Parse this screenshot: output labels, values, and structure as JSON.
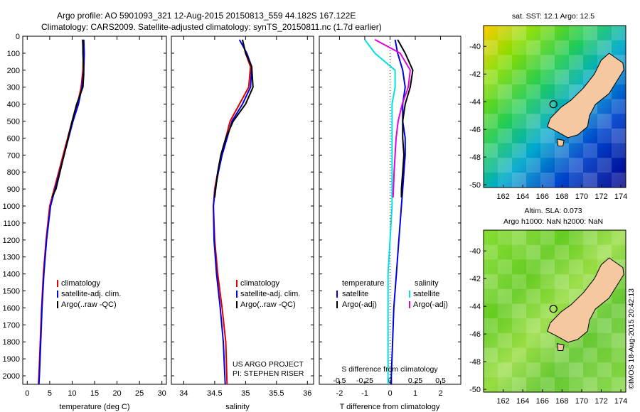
{
  "header": {
    "line1": "Argo profile: AO 5901093_321 12-Aug-2015 20150813_559 44.182S 167.122E",
    "line2": "Climatology: CARS2009. Satellite-adjusted climatology: synTS_20150811.nc (1.7d earlier)"
  },
  "colors": {
    "climatology": "#e00000",
    "satellite": "#0000e0",
    "argo": "#000000",
    "s_satellite": "#00e0e0",
    "s_argo": "#e000e0",
    "land": "#f5c8a0"
  },
  "chart_data": [
    {
      "type": "line",
      "title": "",
      "xlabel": "temperature (deg C)",
      "xlim": [
        -1,
        31
      ],
      "ylim": [
        0,
        2050
      ],
      "y_inverted": true,
      "x_ticks": [
        "0",
        "5",
        "10",
        "15",
        "20",
        "25",
        "30"
      ],
      "y_ticks": [
        "0",
        "100",
        "200",
        "300",
        "400",
        "500",
        "600",
        "700",
        "800",
        "900",
        "1000",
        "1100",
        "1200",
        "1300",
        "1400",
        "1500",
        "1600",
        "1700",
        "1800",
        "1900",
        "2000"
      ],
      "legend": [
        "climatology",
        "satellite-adj. clim.",
        "Argo(..raw -QC)"
      ],
      "legend_placement": "lower-center",
      "series": [
        {
          "name": "climatology",
          "color": "#e00000",
          "x": [
            12.3,
            12.5,
            12.4,
            12.0,
            11.2,
            10.0,
            9.0,
            8.0,
            7.0,
            6.0,
            5.0,
            4.2,
            3.6,
            3.2,
            2.9,
            2.6,
            2.5
          ],
          "y": [
            20,
            100,
            200,
            300,
            400,
            500,
            600,
            700,
            800,
            900,
            1000,
            1200,
            1400,
            1600,
            1800,
            2000,
            2050
          ]
        },
        {
          "name": "satellite-adj. clim.",
          "color": "#0000e0",
          "x": [
            12.6,
            12.7,
            12.6,
            12.2,
            11.4,
            10.2,
            9.2,
            8.2,
            7.2,
            6.2,
            5.2,
            4.3,
            3.7,
            3.3,
            3.0,
            2.7,
            2.6
          ],
          "y": [
            20,
            100,
            200,
            300,
            400,
            500,
            600,
            700,
            800,
            900,
            1000,
            1200,
            1400,
            1600,
            1800,
            2000,
            2050
          ]
        },
        {
          "name": "Argo(..raw -QC)",
          "color": "#000000",
          "x": [
            12.4,
            12.4,
            12.6,
            12.4,
            11.0,
            10.0,
            9.1,
            8.2,
            7.3,
            6.4,
            5.5
          ],
          "y": [
            20,
            100,
            220,
            300,
            400,
            500,
            600,
            700,
            800,
            900,
            950
          ]
        }
      ]
    },
    {
      "type": "line",
      "title": "",
      "xlabel": "salinity",
      "xlim": [
        33.8,
        36.1
      ],
      "ylim": [
        0,
        2050
      ],
      "y_inverted": true,
      "x_ticks": [
        "34",
        "34.5",
        "35",
        "35.5",
        "36"
      ],
      "legend": [
        "climatology",
        "satellite-adj. clim.",
        "Argo(..raw -QC)"
      ],
      "legend_placement": "lower-right",
      "annotation": [
        "US ARGO PROJECT",
        "PI: STEPHEN RISER"
      ],
      "series": [
        {
          "name": "climatology",
          "color": "#e00000",
          "x": [
            34.95,
            35.0,
            35.08,
            35.05,
            34.9,
            34.75,
            34.68,
            34.6,
            34.55,
            34.5,
            34.48,
            34.5,
            34.55,
            34.62,
            34.68,
            34.7
          ],
          "y": [
            20,
            100,
            180,
            300,
            400,
            500,
            600,
            700,
            800,
            900,
            1000,
            1200,
            1400,
            1600,
            1800,
            2050
          ]
        },
        {
          "name": "satellite-adj. clim.",
          "color": "#0000e0",
          "x": [
            34.9,
            35.02,
            35.1,
            35.08,
            34.95,
            34.78,
            34.7,
            34.62,
            34.56,
            34.51,
            34.48,
            34.49,
            34.53,
            34.59,
            34.64,
            34.67
          ],
          "y": [
            20,
            100,
            180,
            300,
            400,
            500,
            600,
            700,
            800,
            900,
            1000,
            1200,
            1400,
            1600,
            1800,
            2050
          ]
        },
        {
          "name": "Argo(..raw -QC)",
          "color": "#000000",
          "x": [
            34.95,
            35.0,
            35.1,
            35.12,
            35.0,
            34.8,
            34.68,
            34.6,
            34.55,
            34.5
          ],
          "y": [
            20,
            100,
            180,
            300,
            400,
            500,
            600,
            700,
            800,
            950
          ]
        }
      ]
    },
    {
      "type": "line",
      "title": "",
      "xlabel": "T difference from climatology",
      "xlabel_top": "S difference from climatology",
      "xlim": [
        -2.8,
        2.8
      ],
      "ylim": [
        0,
        2050
      ],
      "y_inverted": true,
      "x_ticks": [
        "-2",
        "-1",
        "0",
        "1",
        "2"
      ],
      "x_ticks_top": [
        "-0.5",
        "-0.25",
        "0",
        "0.25",
        "0.5"
      ],
      "legend_left_header": "temperature",
      "legend_right_header": "salinity",
      "legend_left": [
        "satellite",
        "Argo(-adj)"
      ],
      "legend_right": [
        "satellite",
        "Argo(-adj)"
      ],
      "series": [
        {
          "name": "temperature satellite",
          "color": "#0000e0",
          "x": [
            0.2,
            0.3,
            0.5,
            0.6,
            0.5,
            0.5,
            0.6,
            0.6,
            0.55,
            0.5,
            0.45,
            0.35,
            0.25,
            0.15,
            0.1,
            0.05,
            0.05
          ],
          "y": [
            20,
            100,
            200,
            300,
            400,
            500,
            600,
            700,
            800,
            900,
            1000,
            1200,
            1400,
            1600,
            1800,
            2000,
            2050
          ]
        },
        {
          "name": "temperature Argo(-adj)",
          "color": "#000000",
          "x": [
            0.3,
            0.6,
            0.9,
            0.8,
            0.6,
            0.5,
            0.5,
            0.55,
            0.5,
            0.45,
            0.45
          ],
          "y": [
            20,
            100,
            200,
            300,
            400,
            500,
            600,
            700,
            800,
            900,
            950
          ]
        },
        {
          "name": "salinity satellite",
          "color": "#00e0e0",
          "x": [
            -0.25,
            -0.15,
            0.05,
            0.05,
            0.02,
            0.02,
            0.02,
            0.02,
            0.02,
            0.02,
            0.02,
            0.0,
            -0.02,
            -0.02,
            -0.02,
            -0.02
          ],
          "y": [
            20,
            100,
            200,
            300,
            400,
            500,
            600,
            700,
            800,
            900,
            1000,
            1200,
            1400,
            1600,
            1800,
            2050
          ]
        },
        {
          "name": "salinity Argo(-adj)",
          "color": "#e000e0",
          "x": [
            -0.15,
            0.1,
            0.2,
            0.18,
            0.12,
            0.08,
            0.06,
            0.05,
            0.04,
            0.03
          ],
          "y": [
            20,
            100,
            200,
            300,
            400,
            500,
            600,
            700,
            800,
            950
          ]
        }
      ]
    }
  ],
  "maps": {
    "top_title": "sat. SST: 12.1  Argo: 12.5",
    "bottom_title_1": "Altim. SLA: 0.073",
    "bottom_title_2": "Argo h1000: NaN h2000: NaN",
    "lon_ticks": [
      "162",
      "164",
      "166",
      "168",
      "170",
      "172",
      "174"
    ],
    "lat_ticks": [
      "-40",
      "-42",
      "-44",
      "-46",
      "-48",
      "-50"
    ],
    "argo_position": {
      "lon": 167.122,
      "lat": -44.182
    },
    "credit": "©IMOS 18-Aug-2015 20:42:13"
  }
}
